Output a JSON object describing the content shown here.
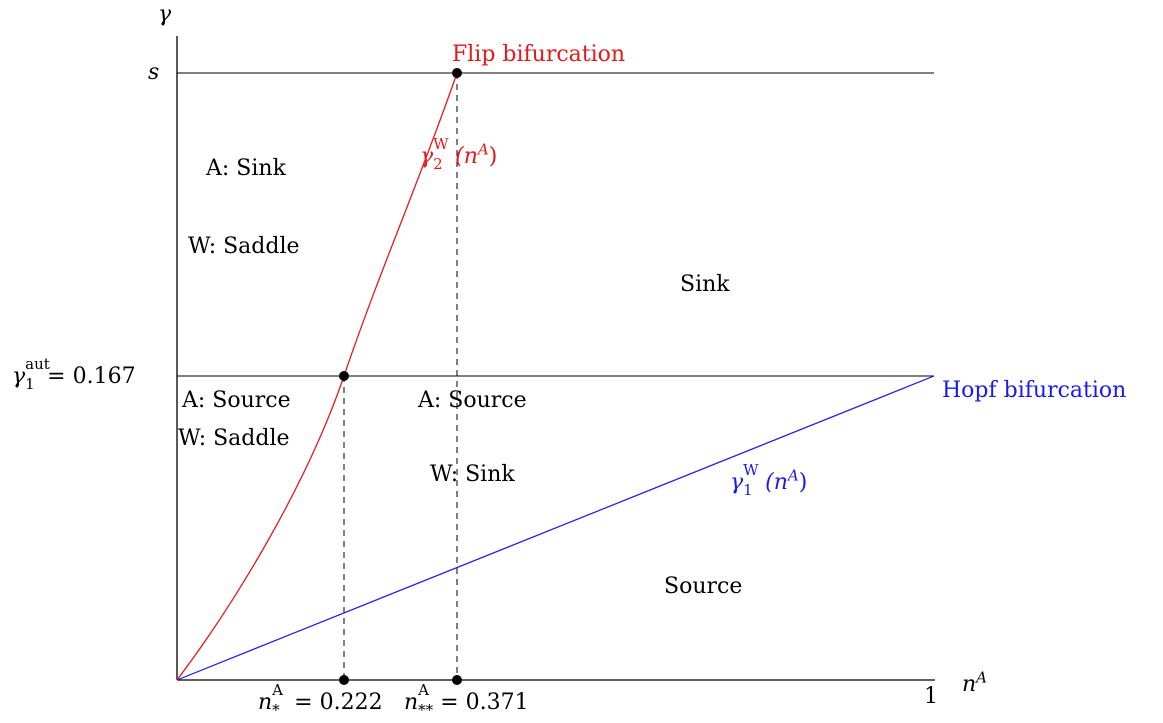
{
  "axes": {
    "y_symbol": "γ",
    "x_symbol": "n",
    "x_superscript": "A",
    "x_max_label": "1",
    "y_top_label": "s"
  },
  "ticks": {
    "gamma_aut_base": "γ",
    "gamma_aut_sup": "aut",
    "gamma_aut_sub": "1",
    "gamma_aut_value": "= 0.167",
    "n_star_base": "n",
    "n_star_sup": "A",
    "n_star_sub": "*",
    "n_star_value": "= 0.222",
    "n_2star_base": "n",
    "n_2star_sup": "A",
    "n_2star_sub": "**",
    "n_2star_value": "= 0.371"
  },
  "curves": {
    "flip_title": "Flip bifurcation",
    "flip_curve_base": "γ",
    "flip_curve_sup": "W",
    "flip_curve_sub": "2",
    "flip_curve_arg": "(n",
    "flip_curve_arg_sup": "A",
    "flip_curve_close": ")",
    "hopf_title": "Hopf bifurcation",
    "hopf_curve_base": "γ",
    "hopf_curve_sup": "W",
    "hopf_curve_sub": "1",
    "hopf_curve_arg": "(n",
    "hopf_curve_arg_sup": "A",
    "hopf_curve_close": ")",
    "flip_color": "#e41a1c",
    "hopf_color": "#1a1aee"
  },
  "regions": {
    "upper_left_a": "A: Sink",
    "upper_left_w": "W: Saddle",
    "upper_right": "Sink",
    "mid_left_a": "A: Source",
    "mid_left_w": "W: Saddle",
    "mid_center_a": "A: Source",
    "mid_center_w": "W: Sink",
    "lower_right": "Source"
  },
  "chart_data": {
    "type": "bifurcation-diagram",
    "x_range": [
      0,
      1
    ],
    "y_reference_lines": [
      "s",
      0.167
    ],
    "points": [
      {
        "x": 0.222,
        "y": 0.167
      },
      {
        "x": 0.371,
        "y": "s"
      },
      {
        "x": 0.222,
        "y": 0
      },
      {
        "x": 0.371,
        "y": 0
      }
    ],
    "curves": [
      {
        "name": "γ2W(nA)",
        "from": [
          0,
          0
        ],
        "through": [
          0.222,
          0.167
        ],
        "to": [
          0.371,
          "s"
        ]
      },
      {
        "name": "γ1W(nA)",
        "from": [
          0,
          0
        ],
        "to": [
          1,
          0.167
        ]
      }
    ]
  }
}
